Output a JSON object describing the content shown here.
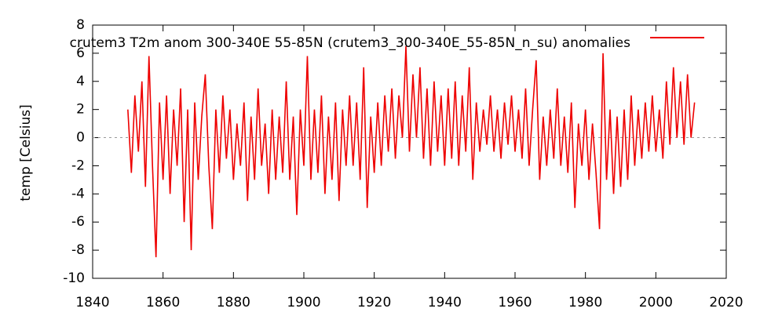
{
  "chart_data": {
    "type": "line",
    "ylabel": "temp [Celsius]",
    "legend": "upper right",
    "zero_line": true,
    "xlim": [
      1840,
      2020
    ],
    "xticks": [
      1840,
      1860,
      1880,
      1900,
      1920,
      1940,
      1960,
      1980,
      2000,
      2020
    ],
    "ylim": [
      -10,
      8
    ],
    "yticks": [
      -10,
      -8,
      -6,
      -4,
      -2,
      0,
      2,
      4,
      6,
      8
    ],
    "x": [
      1850,
      1851,
      1852,
      1853,
      1854,
      1855,
      1856,
      1857,
      1858,
      1859,
      1860,
      1861,
      1862,
      1863,
      1864,
      1865,
      1866,
      1867,
      1868,
      1869,
      1870,
      1871,
      1872,
      1873,
      1874,
      1875,
      1876,
      1877,
      1878,
      1879,
      1880,
      1881,
      1882,
      1883,
      1884,
      1885,
      1886,
      1887,
      1888,
      1889,
      1890,
      1891,
      1892,
      1893,
      1894,
      1895,
      1896,
      1897,
      1898,
      1899,
      1900,
      1901,
      1902,
      1903,
      1904,
      1905,
      1906,
      1907,
      1908,
      1909,
      1910,
      1911,
      1912,
      1913,
      1914,
      1915,
      1916,
      1917,
      1918,
      1919,
      1920,
      1921,
      1922,
      1923,
      1924,
      1925,
      1926,
      1927,
      1928,
      1929,
      1930,
      1931,
      1932,
      1933,
      1934,
      1935,
      1936,
      1937,
      1938,
      1939,
      1940,
      1941,
      1942,
      1943,
      1944,
      1945,
      1946,
      1947,
      1948,
      1949,
      1950,
      1951,
      1952,
      1953,
      1954,
      1955,
      1956,
      1957,
      1958,
      1959,
      1960,
      1961,
      1962,
      1963,
      1964,
      1965,
      1966,
      1967,
      1968,
      1969,
      1970,
      1971,
      1972,
      1973,
      1974,
      1975,
      1976,
      1977,
      1978,
      1979,
      1980,
      1981,
      1982,
      1983,
      1984,
      1985,
      1986,
      1987,
      1988,
      1989,
      1990,
      1991,
      1992,
      1993,
      1994,
      1995,
      1996,
      1997,
      1998,
      1999,
      2000,
      2001,
      2002,
      2003,
      2004,
      2005,
      2006,
      2007,
      2008,
      2009,
      2010,
      2011
    ],
    "series": [
      {
        "name": "crutem3 T2m anom 300-340E 55-85N (crutem3_300-340E_55-85N_n_su) anomalies",
        "color": "#ee0000",
        "values": [
          2,
          -2.5,
          3,
          -1,
          4,
          -3.5,
          5.8,
          -2,
          -8.5,
          2.5,
          -3,
          3,
          -4,
          2,
          -2,
          3.5,
          -6,
          2,
          -8,
          2.5,
          -3,
          1.5,
          4.5,
          -2,
          -6.5,
          2,
          -2.5,
          3,
          -1.5,
          2,
          -3,
          1,
          -2,
          2.5,
          -4.5,
          1.5,
          -3,
          3.5,
          -2,
          1,
          -4,
          2,
          -3,
          1.5,
          -2.5,
          4,
          -3,
          1.5,
          -5.5,
          2,
          -2,
          5.8,
          -3,
          2,
          -2.5,
          3,
          -4,
          1.5,
          -3,
          2.5,
          -4.5,
          2,
          -2,
          3,
          -2,
          2.5,
          -3,
          5,
          -5,
          1.5,
          -2.5,
          2.5,
          -2,
          3,
          -1,
          3.5,
          -1.5,
          3,
          0,
          6.5,
          -1,
          4.5,
          0,
          5,
          -1.5,
          3.5,
          -2,
          4,
          -1,
          3,
          -2,
          3.5,
          -1.5,
          4,
          -2,
          3,
          -1,
          5,
          -3,
          2.5,
          -1,
          2,
          -0.5,
          3,
          -1,
          2,
          -1.5,
          2.5,
          -0.5,
          3,
          -1,
          2,
          -1.5,
          3.5,
          -2,
          2,
          5.5,
          -3,
          1.5,
          -2,
          2,
          -1.5,
          3.5,
          -2,
          1.5,
          -2.5,
          2.5,
          -5,
          1,
          -2,
          2,
          -3,
          1,
          -2.5,
          -6.5,
          6,
          -3,
          2,
          -4,
          1.5,
          -3.5,
          2,
          -3,
          3,
          -2,
          2,
          -1.5,
          2.5,
          -1,
          3,
          -1,
          2,
          -1.5,
          4,
          -0.5,
          5,
          0,
          4,
          -0.5,
          4.5,
          0,
          2.5
        ]
      }
    ]
  }
}
